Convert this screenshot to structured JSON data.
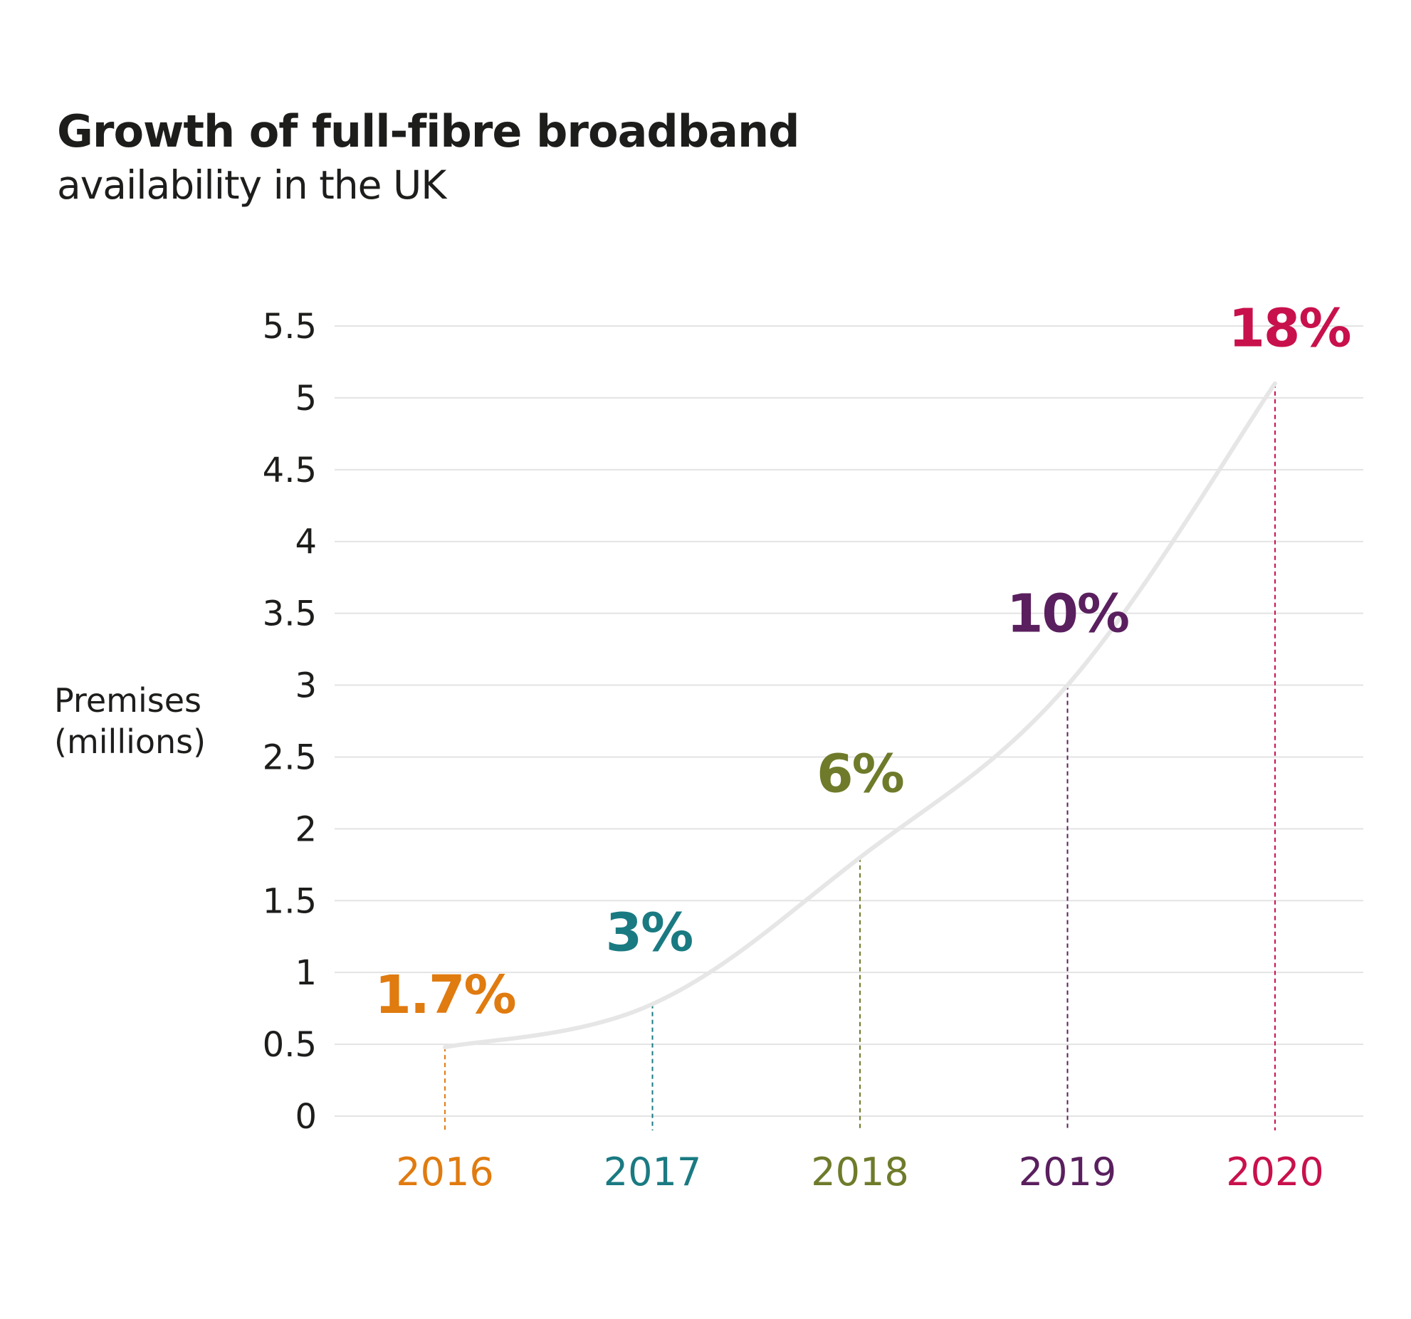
{
  "chart_data": {
    "type": "line",
    "title": "Growth of full-fibre broadband",
    "subtitle": "availability in the UK",
    "ylabel_line1": "Premises",
    "ylabel_line2": "(millions)",
    "xlabel": "",
    "ylim": [
      0,
      5.5
    ],
    "yticks": [
      "0",
      "0.5",
      "1",
      "1.5",
      "2",
      "2.5",
      "3",
      "3.5",
      "4",
      "4.5",
      "5",
      "5.5"
    ],
    "grid": true,
    "points": [
      {
        "year": "2016",
        "value": 0.48,
        "label": "1.7%",
        "color": "#e07b10"
      },
      {
        "year": "2017",
        "value": 0.78,
        "label": "3%",
        "color": "#1a7a82"
      },
      {
        "year": "2018",
        "value": 1.8,
        "label": "6%",
        "color": "#6f7b2a"
      },
      {
        "year": "2019",
        "value": 3.0,
        "label": "10%",
        "color": "#5a1f5e"
      },
      {
        "year": "2020",
        "value": 5.1,
        "label": "18%",
        "color": "#c8114c"
      }
    ],
    "line_color": "#e6e6e6",
    "grid_color": "#e3e3e3"
  }
}
